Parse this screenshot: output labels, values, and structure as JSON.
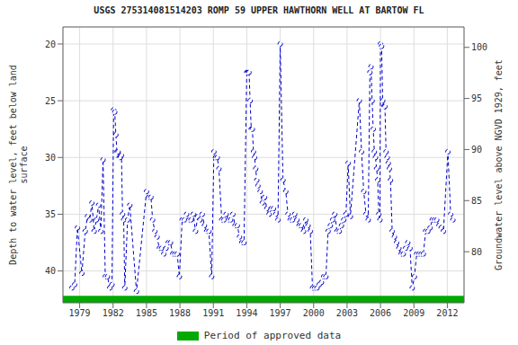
{
  "chart_data": {
    "type": "line",
    "title": "USGS 275314081514203 ROMP 59 UPPER HAWTHORN WELL AT BARTOW FL",
    "ylabel": "Depth to water level, feet below land\nsurface",
    "y2label": "Groundwater level above NGVD 1929, feet",
    "ylim": [
      42.8,
      18.5
    ],
    "yticks": [
      20,
      25,
      30,
      35,
      40
    ],
    "y2lim": [
      75,
      102.0
    ],
    "y2ticks": [
      80,
      85,
      90,
      95,
      100
    ],
    "xlim": [
      1977.5,
      2013.5
    ],
    "xticks": [
      1979,
      1982,
      1985,
      1988,
      1991,
      1994,
      1997,
      2000,
      2003,
      2006,
      2009,
      2012
    ],
    "grid": true,
    "annotations": [
      {
        "text": "Period of approved data",
        "color": "#00aa00"
      }
    ],
    "x": [
      1978.3,
      1978.55,
      1978.8,
      1979.2,
      1979.5,
      1979.7,
      1979.9,
      1980.1,
      1980.3,
      1980.5,
      1980.7,
      1980.9,
      1981.1,
      1981.3,
      1981.5,
      1981.7,
      1981.9,
      1982.05,
      1982.15,
      1982.25,
      1982.35,
      1982.45,
      1982.55,
      1982.65,
      1982.75,
      1982.85,
      1982.95,
      1983.05,
      1983.3,
      1983.5,
      1984.1,
      1985.0,
      1985.2,
      1985.4,
      1985.55,
      1985.75,
      1985.95,
      1986.15,
      1986.35,
      1986.55,
      1986.75,
      1986.95,
      1987.15,
      1987.35,
      1987.55,
      1987.75,
      1987.95,
      1988.2,
      1988.4,
      1988.6,
      1988.8,
      1989.0,
      1989.2,
      1989.4,
      1989.6,
      1989.8,
      1990.0,
      1990.2,
      1990.4,
      1990.6,
      1990.85,
      1991.05,
      1991.2,
      1991.35,
      1991.5,
      1991.75,
      1991.95,
      1992.15,
      1992.35,
      1992.55,
      1992.75,
      1992.95,
      1993.15,
      1993.35,
      1993.55,
      1993.75,
      1994.0,
      1994.1,
      1994.2,
      1994.3,
      1994.4,
      1994.5,
      1994.6,
      1994.7,
      1994.8,
      1994.9,
      1995.0,
      1995.2,
      1995.4,
      1995.6,
      1995.8,
      1996.0,
      1996.2,
      1996.4,
      1996.6,
      1996.8,
      1997.0,
      1997.25,
      1997.5,
      1997.7,
      1997.9,
      1998.1,
      1998.3,
      1998.5,
      1998.7,
      1998.9,
      1999.1,
      1999.3,
      1999.5,
      1999.7,
      1999.9,
      2000.1,
      2000.3,
      2000.5,
      2000.7,
      2000.9,
      2001.1,
      2001.3,
      2001.5,
      2001.7,
      2001.9,
      2002.1,
      2002.3,
      2002.5,
      2002.7,
      2002.9,
      2003.1,
      2003.3,
      2004.1,
      2004.3,
      2004.5,
      2004.7,
      2004.9,
      2005.05,
      2005.15,
      2005.25,
      2005.35,
      2005.45,
      2005.55,
      2005.65,
      2005.75,
      2005.85,
      2005.95,
      2006.0,
      2006.1,
      2006.2,
      2006.3,
      2006.4,
      2006.5,
      2006.6,
      2006.7,
      2006.8,
      2006.9,
      2007.05,
      2007.25,
      2007.45,
      2007.65,
      2007.85,
      2008.05,
      2008.25,
      2008.45,
      2008.65,
      2008.85,
      2009.05,
      2009.25,
      2009.45,
      2009.65,
      2009.85,
      2010.05,
      2010.25,
      2010.45,
      2010.65,
      2010.85,
      2011.05,
      2011.25,
      2011.45,
      2011.65,
      2012.05,
      2012.3,
      2012.5
    ],
    "series": [
      {
        "color": "#0000cc",
        "line_style": "dashed",
        "marker": "circle",
        "values": [
          41.5,
          41.2,
          36.2,
          40.2,
          36.5,
          35.2,
          35.5,
          34.0,
          36.5,
          35.5,
          34.2,
          36.5,
          30.2,
          40.5,
          40.5,
          41.5,
          41.2,
          25.8,
          26.0,
          28.0,
          29.5,
          29.5,
          30.0,
          30.0,
          29.8,
          35.0,
          35.5,
          41.5,
          35.5,
          34.2,
          41.8,
          33.0,
          33.5,
          33.5,
          35.5,
          36.5,
          37.0,
          38.0,
          38.0,
          38.5,
          38.0,
          37.5,
          37.5,
          38.5,
          38.5,
          38.5,
          40.5,
          35.5,
          35.5,
          35.0,
          35.5,
          35.5,
          35.0,
          36.5,
          35.2,
          35.5,
          35.0,
          36.0,
          36.5,
          36.5,
          40.5,
          29.5,
          30.0,
          30.0,
          31.0,
          35.5,
          35.5,
          35.0,
          35.5,
          35.5,
          35.0,
          36.0,
          36.0,
          37.0,
          37.5,
          37.5,
          22.5,
          22.5,
          22.5,
          25.0,
          27.5,
          27.5,
          29.5,
          30.0,
          31.0,
          32.0,
          32.5,
          33.0,
          34.0,
          33.5,
          34.5,
          35.0,
          34.5,
          34.5,
          35.0,
          35.5,
          20.0,
          32.0,
          33.0,
          35.0,
          35.5,
          35.5,
          35.0,
          35.5,
          36.0,
          36.0,
          36.5,
          35.5,
          36.0,
          36.5,
          41.5,
          41.5,
          41.5,
          41.2,
          41.0,
          40.5,
          40.5,
          36.5,
          36.0,
          35.5,
          35.0,
          36.5,
          36.5,
          36.0,
          35.5,
          35.0,
          30.5,
          35.2,
          25.0,
          29.5,
          33.0,
          35.0,
          35.5,
          22.5,
          22.0,
          25.0,
          27.5,
          29.5,
          30.0,
          31.0,
          32.0,
          35.0,
          35.5,
          20.0,
          20.2,
          25.0,
          25.5,
          25.5,
          29.5,
          30.0,
          30.5,
          31.0,
          32.0,
          36.5,
          37.0,
          37.5,
          38.0,
          38.5,
          38.5,
          38.0,
          37.5,
          38.0,
          41.5,
          40.5,
          38.5,
          38.5,
          38.5,
          38.5,
          36.5,
          36.5,
          36.2,
          35.5,
          35.5,
          35.5,
          36.0,
          36.2,
          36.5,
          29.5,
          35.0,
          35.5
        ]
      }
    ]
  }
}
